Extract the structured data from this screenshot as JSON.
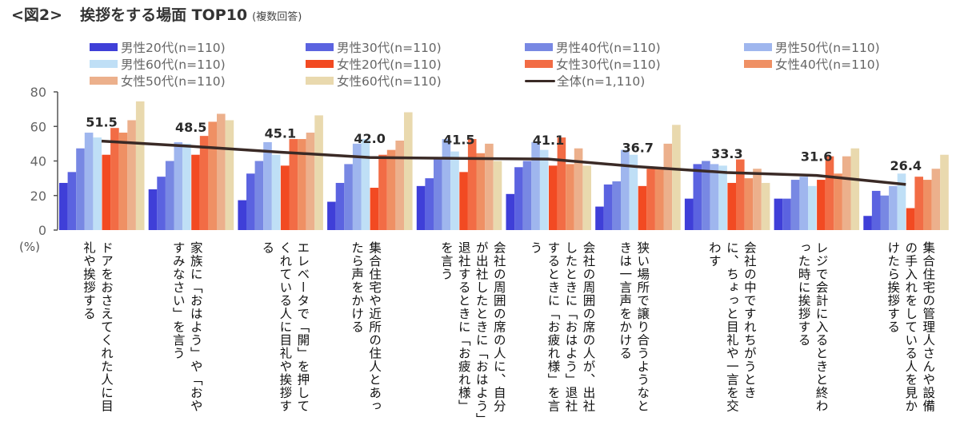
{
  "title": {
    "figure_label": "<図2>",
    "main": "挨拶をする場面 TOP10",
    "note": "(複数回答)"
  },
  "unit_label": "(%)",
  "chart_data": {
    "type": "bar",
    "title": "挨拶をする場面 TOP10 (複数回答)",
    "xlabel": "",
    "ylabel": "(%)",
    "ylim": [
      0,
      80
    ],
    "yticks": [
      0,
      20,
      40,
      60,
      80
    ],
    "grid": false,
    "legend_position": "top",
    "categories": [
      "ドアをおさえてくれた人に目礼や挨拶する",
      "家族に「おはよう」や「おやすみなさい」を言う",
      "エレベータで「開」を押してくれている人に目礼や挨拶する",
      "集合住宅や近所の住人とあったら声をかける",
      "会社の周囲の席の人に、自分が出社したときに「おはよう」退社するときに「お疲れ様」を言う",
      "会社の周囲の席の人が、出社したときに「おはよう」退社するときに「お疲れ様」を言う",
      "狭い場所で譲り合うようなときは一言声をかける",
      "会社の中ですれちがうときに、ちょっと目礼や一言を交わす",
      "レジで会計に入るときと終わった時に挨拶する",
      "集合住宅の管理人さんや設備の手入れをしている人を見かけたら挨拶する"
    ],
    "series": [
      {
        "name": "男性20代(n=110)",
        "color": "#3f3fd8",
        "values": [
          27.3,
          23.6,
          17.3,
          16.4,
          25.5,
          20.9,
          13.6,
          18.2,
          18.2,
          8.2
        ]
      },
      {
        "name": "男性30代(n=110)",
        "color": "#5b63e0",
        "values": [
          33.6,
          30.9,
          32.7,
          27.3,
          30.0,
          36.4,
          26.4,
          38.2,
          18.2,
          22.7
        ]
      },
      {
        "name": "男性40代(n=110)",
        "color": "#7888e3",
        "values": [
          47.3,
          40.0,
          40.0,
          38.2,
          40.9,
          40.0,
          28.2,
          40.0,
          29.1,
          20.0
        ]
      },
      {
        "name": "男性50代(n=110)",
        "color": "#9fb6ee",
        "values": [
          56.4,
          50.9,
          50.9,
          50.0,
          52.7,
          50.9,
          46.4,
          38.2,
          30.9,
          25.5
        ]
      },
      {
        "name": "男性60代(n=110)",
        "color": "#bfdff6",
        "values": [
          53.6,
          50.0,
          43.6,
          52.7,
          45.5,
          46.4,
          43.6,
          37.3,
          25.5,
          32.7
        ]
      },
      {
        "name": "女性20代(n=110)",
        "color": "#f24a22",
        "values": [
          43.6,
          43.6,
          37.3,
          24.5,
          33.6,
          37.3,
          25.5,
          27.3,
          29.1,
          12.7
        ]
      },
      {
        "name": "女性30代(n=110)",
        "color": "#f26c45",
        "values": [
          59.1,
          54.5,
          52.7,
          43.6,
          52.7,
          53.6,
          35.5,
          40.9,
          42.7,
          30.9
        ]
      },
      {
        "name": "女性40代(n=110)",
        "color": "#ef9064",
        "values": [
          56.4,
          62.7,
          52.7,
          46.4,
          44.5,
          38.2,
          35.5,
          30.0,
          32.7,
          29.1
        ]
      },
      {
        "name": "女性50代(n=110)",
        "color": "#ecb08c",
        "values": [
          63.6,
          67.3,
          56.4,
          51.8,
          50.0,
          47.3,
          50.0,
          35.5,
          42.7,
          35.5
        ]
      },
      {
        "name": "女性60代(n=110)",
        "color": "#e9d9ae",
        "values": [
          74.5,
          63.6,
          66.4,
          68.2,
          40.0,
          37.3,
          60.9,
          27.3,
          47.3,
          43.6
        ]
      }
    ],
    "line_series": {
      "name": "全体(n=1,110)",
      "color": "#3a2a26",
      "values": [
        51.5,
        48.5,
        45.1,
        42.0,
        41.5,
        41.1,
        36.7,
        33.3,
        31.6,
        26.4
      ],
      "labels": [
        "51.5",
        "48.5",
        "45.1",
        "42.0",
        "41.5",
        "41.1",
        "36.7",
        "33.3",
        "31.6",
        "26.4"
      ]
    }
  }
}
